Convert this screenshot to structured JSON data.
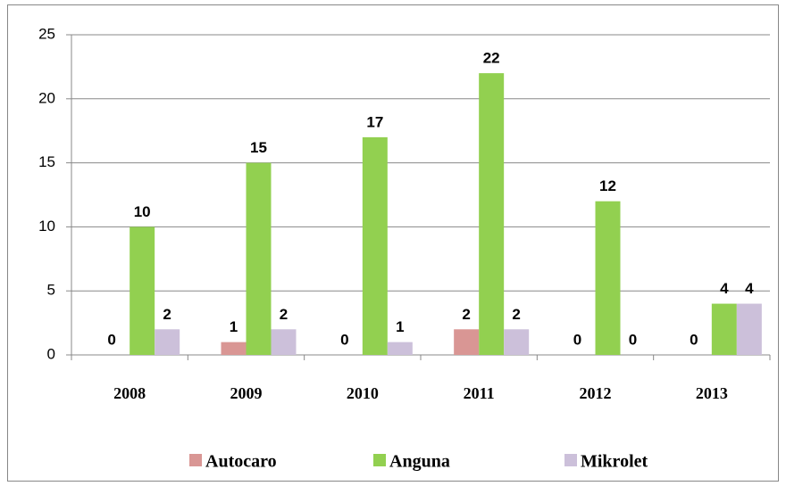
{
  "chart_data": {
    "type": "bar",
    "categories": [
      "2008",
      "2009",
      "2010",
      "2011",
      "2012",
      "2013"
    ],
    "series": [
      {
        "name": "Autocaro",
        "color": "#d99694",
        "values": [
          0,
          1,
          0,
          2,
          0,
          0
        ]
      },
      {
        "name": "Anguna",
        "color": "#92d050",
        "values": [
          10,
          15,
          17,
          22,
          12,
          4
        ]
      },
      {
        "name": "Mikrolet",
        "color": "#ccc0da",
        "values": [
          2,
          2,
          1,
          2,
          0,
          4
        ]
      }
    ],
    "ylim": [
      0,
      25
    ],
    "yticks": [
      0,
      5,
      10,
      15,
      20,
      25
    ],
    "grid": true,
    "legend": "bottom"
  }
}
